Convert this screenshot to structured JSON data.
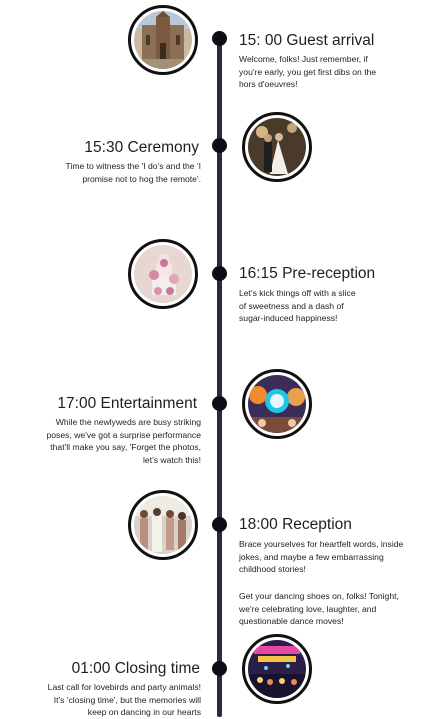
{
  "events": [
    {
      "title": "15: 00 Guest arrival",
      "description": [
        "Welcome, folks! Just remember, if",
        "you're early, you get first dibs on the",
        "hors d'oeuvres!"
      ],
      "image": "church-building-photo"
    },
    {
      "title": "15:30 Ceremony",
      "description": [
        "Time to witness the 'I do's and the 'I",
        "promise not to hog the remote'."
      ],
      "image": "wedding-ceremony-photo"
    },
    {
      "title": "16:15 Pre-reception",
      "description": [
        "Let's kick things off with a slice",
        "of sweetness and a dash of",
        "sugar-induced happiness!"
      ],
      "image": "wedding-cake-photo"
    },
    {
      "title": "17:00 Entertainment",
      "description": [
        "While the newlyweds are busy striking",
        "poses, we've got a surprise performance",
        "that'll make you say, 'Forget the photos,",
        "let's watch this!"
      ],
      "image": "party-performance-photo"
    },
    {
      "title": "18:00 Reception",
      "description": [
        "Brace yourselves for heartfelt words, inside",
        "jokes, and maybe a few embarrassing",
        "childhood stories!"
      ],
      "description2": [
        "Get your dancing shoes on, folks! Tonight,",
        "we're celebrating love, laughter, and",
        "questionable dance moves!"
      ],
      "image": "bridal-party-photo"
    },
    {
      "title": "01:00 Closing time",
      "description": [
        "Last call for lovebirds and party animals!",
        "It's 'closing time', but the memories will",
        "keep on dancing in our hearts"
      ],
      "image": "dance-party-photo"
    }
  ]
}
